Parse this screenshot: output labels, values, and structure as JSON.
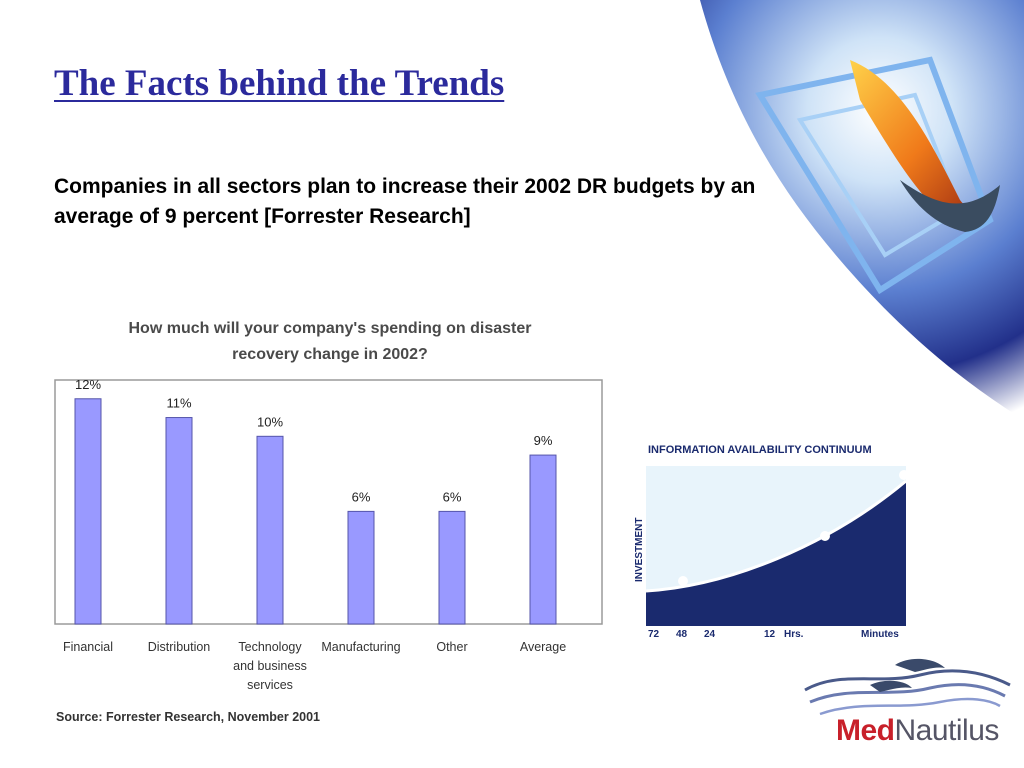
{
  "slide": {
    "title": "The Facts behind the Trends",
    "subtitle": "Companies in all sectors plan to increase their 2002 DR budgets by an average of 9 percent [Forrester Research]"
  },
  "chart_data": {
    "type": "bar",
    "title": "How much will your company's spending on disaster recovery change in 2002?",
    "categories": [
      "Financial",
      "Distribution",
      "Technology and business services",
      "Manufacturing",
      "Other",
      "Average"
    ],
    "category_lines": [
      [
        "Financial"
      ],
      [
        "Distribution"
      ],
      [
        "Technology",
        "and business",
        "services"
      ],
      [
        "Manufacturing"
      ],
      [
        "Other"
      ],
      [
        "Average"
      ]
    ],
    "values": [
      12,
      11,
      10,
      6,
      6,
      9
    ],
    "value_labels": [
      "12%",
      "11%",
      "10%",
      "6%",
      "6%",
      "9%"
    ],
    "ylim": [
      0,
      13
    ],
    "grid": false,
    "bar_color": "#9999ff",
    "source": "Source: Forrester Research, November 2001"
  },
  "continuum": {
    "title": "INFORMATION AVAILABILITY  CONTINUUM",
    "ylabel": "INVESTMENT",
    "xticks": [
      "72",
      "48",
      "24",
      "12",
      "Hrs.",
      "Minutes"
    ]
  },
  "logo": {
    "part1": "Med",
    "part2": "Nautilus",
    "brand_red": "#c8202a"
  },
  "colors": {
    "title": "#2b2a9c",
    "continuum_dark": "#1a2a6e"
  }
}
